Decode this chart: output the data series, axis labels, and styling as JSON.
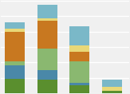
{
  "bars": [
    {
      "x": 0,
      "segments": [
        {
          "value": 15,
          "color": "#5a8f2e"
        },
        {
          "value": 14,
          "color": "#4a88a8"
        },
        {
          "value": 4,
          "color": "#8ab870"
        },
        {
          "value": 30,
          "color": "#c87820"
        },
        {
          "value": 3,
          "color": "#e8d878"
        },
        {
          "value": 7,
          "color": "#7ab8c8"
        }
      ]
    },
    {
      "x": 1,
      "segments": [
        {
          "value": 14,
          "color": "#5a8f2e"
        },
        {
          "value": 10,
          "color": "#4a88a8"
        },
        {
          "value": 22,
          "color": "#8ab870"
        },
        {
          "value": 28,
          "color": "#c87820"
        },
        {
          "value": 3,
          "color": "#e8d878"
        },
        {
          "value": 14,
          "color": "#7ab8c8"
        }
      ]
    },
    {
      "x": 2,
      "segments": [
        {
          "value": 8,
          "color": "#5a8f2e"
        },
        {
          "value": 3,
          "color": "#4a88a8"
        },
        {
          "value": 22,
          "color": "#8ab870"
        },
        {
          "value": 10,
          "color": "#c87820"
        },
        {
          "value": 6,
          "color": "#e8d878"
        },
        {
          "value": 20,
          "color": "#7ab8c8"
        }
      ]
    },
    {
      "x": 3,
      "segments": [
        {
          "value": 3,
          "color": "#5a8f2e"
        },
        {
          "value": 2,
          "color": "#e8d878"
        },
        {
          "value": 2,
          "color": "#e8d878"
        },
        {
          "value": 7,
          "color": "#7ab8c8"
        }
      ]
    }
  ],
  "background_color": "#f0f0f0",
  "bar_width": 0.62,
  "ylim": [
    0,
    95
  ],
  "grid_color": "#ffffff",
  "figsize": [
    1.63,
    1.18
  ],
  "dpi": 100,
  "xlim": [
    -0.45,
    3.55
  ]
}
